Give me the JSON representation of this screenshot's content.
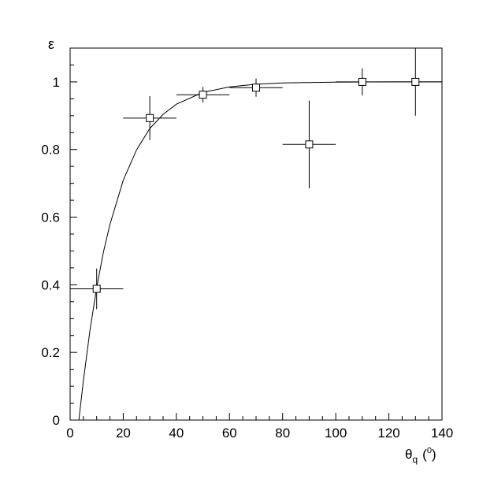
{
  "chart_data": {
    "type": "scatter",
    "title": "",
    "xlabel": "θq (°)",
    "xlabel_main": "θ",
    "xlabel_sub": "q",
    "xlabel_unit_open": "(",
    "xlabel_unit_sup": "0",
    "xlabel_unit_close": ")",
    "ylabel": "ε",
    "xlim": [
      0,
      140
    ],
    "ylim": [
      0,
      1.1
    ],
    "x_ticks": [
      "0",
      "20",
      "40",
      "60",
      "80",
      "100",
      "120",
      "140"
    ],
    "y_ticks": [
      "0",
      "0.2",
      "0.4",
      "0.6",
      "0.8",
      "1"
    ],
    "grid": false,
    "points": {
      "x": [
        10,
        30,
        50,
        70,
        90,
        110,
        130
      ],
      "y": [
        0.388,
        0.893,
        0.962,
        0.983,
        0.815,
        1.0,
        1.0
      ],
      "xerr": [
        10,
        10,
        10,
        10,
        10,
        10,
        10
      ],
      "yerr": [
        0.06,
        0.065,
        0.023,
        0.027,
        0.13,
        0.04,
        0.1
      ],
      "marker": "open-square"
    },
    "fit_curve": {
      "x": [
        3.3,
        5,
        7.5,
        10,
        12.5,
        15,
        20,
        25,
        30,
        35,
        40,
        50,
        60,
        70,
        80,
        100,
        120,
        140
      ],
      "y": [
        0.0,
        0.118,
        0.267,
        0.391,
        0.495,
        0.579,
        0.709,
        0.799,
        0.862,
        0.904,
        0.934,
        0.969,
        0.985,
        0.993,
        0.997,
        0.999,
        1.0,
        1.0
      ]
    }
  }
}
